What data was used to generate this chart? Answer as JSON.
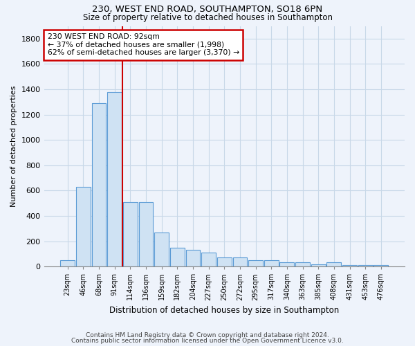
{
  "title1": "230, WEST END ROAD, SOUTHAMPTON, SO18 6PN",
  "title2": "Size of property relative to detached houses in Southampton",
  "xlabel": "Distribution of detached houses by size in Southampton",
  "ylabel": "Number of detached properties",
  "categories": [
    "23sqm",
    "46sqm",
    "68sqm",
    "91sqm",
    "114sqm",
    "136sqm",
    "159sqm",
    "182sqm",
    "204sqm",
    "227sqm",
    "250sqm",
    "272sqm",
    "295sqm",
    "317sqm",
    "340sqm",
    "363sqm",
    "385sqm",
    "408sqm",
    "431sqm",
    "453sqm",
    "476sqm"
  ],
  "values": [
    48,
    628,
    1290,
    1380,
    510,
    510,
    268,
    148,
    130,
    108,
    72,
    70,
    48,
    48,
    33,
    33,
    18,
    33,
    9,
    9,
    9
  ],
  "bar_color": "#cfe2f3",
  "bar_edge_color": "#5b9bd5",
  "vline_x_index": 3.5,
  "vline_color": "#cc0000",
  "annotation_text": "230 WEST END ROAD: 92sqm\n← 37% of detached houses are smaller (1,998)\n62% of semi-detached houses are larger (3,370) →",
  "annotation_box_color": "#cc0000",
  "ylim": [
    0,
    1900
  ],
  "yticks": [
    0,
    200,
    400,
    600,
    800,
    1000,
    1200,
    1400,
    1600,
    1800
  ],
  "footer1": "Contains HM Land Registry data © Crown copyright and database right 2024.",
  "footer2": "Contains public sector information licensed under the Open Government Licence v3.0.",
  "bg_color": "#eef3fb",
  "plot_bg_color": "#eef3fb",
  "grid_color": "#c8d8e8",
  "title1_fontsize": 9.5,
  "title2_fontsize": 8.5
}
